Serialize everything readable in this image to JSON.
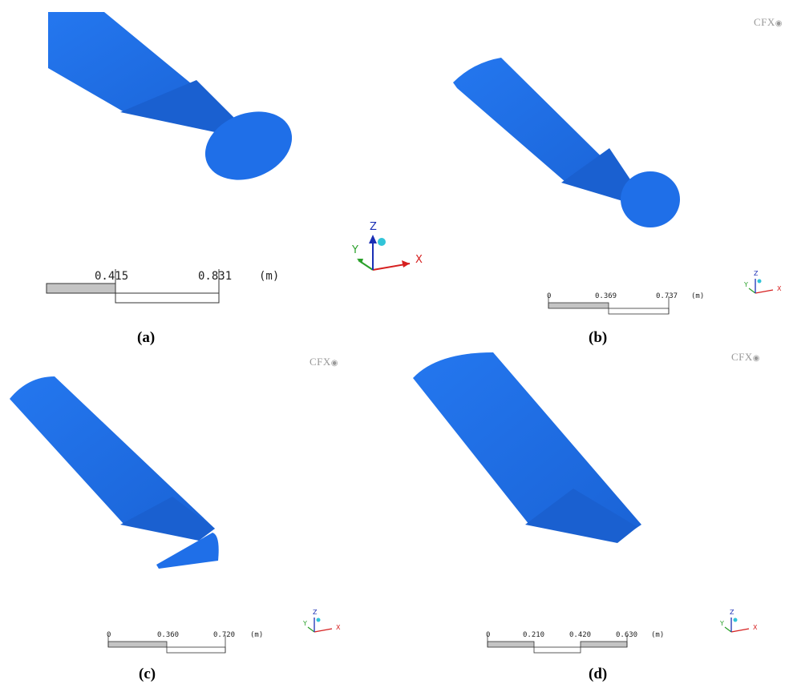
{
  "panels": [
    {
      "caption": "(a)",
      "logo": "",
      "scale": {
        "ticks": [
          "",
          "0.415",
          "0.831"
        ],
        "unit": "(m)"
      }
    },
    {
      "caption": "(b)",
      "logo": "CFX",
      "scale": {
        "ticks": [
          "0",
          "0.369",
          "0.737"
        ],
        "unit": "(m)"
      }
    },
    {
      "caption": "(c)",
      "logo": "CFX",
      "scale": {
        "ticks": [
          "0",
          "0.360",
          "0.720"
        ],
        "unit": "(m)"
      }
    },
    {
      "caption": "(d)",
      "logo": "CFX",
      "scale": {
        "ticks": [
          "0",
          "0.210",
          "0.420",
          "0.630"
        ],
        "unit": "(m)"
      }
    }
  ],
  "axes": {
    "x": "X",
    "y": "Y",
    "z": "Z"
  },
  "colors": {
    "body": "#1f6fe8",
    "body_dark": "#165ccc",
    "scale_fill": "#c4c4c4",
    "axis_x": "#d62020",
    "axis_y": "#2aa02a",
    "axis_z": "#1a2fb5",
    "axis_dot": "#31c4d8"
  }
}
